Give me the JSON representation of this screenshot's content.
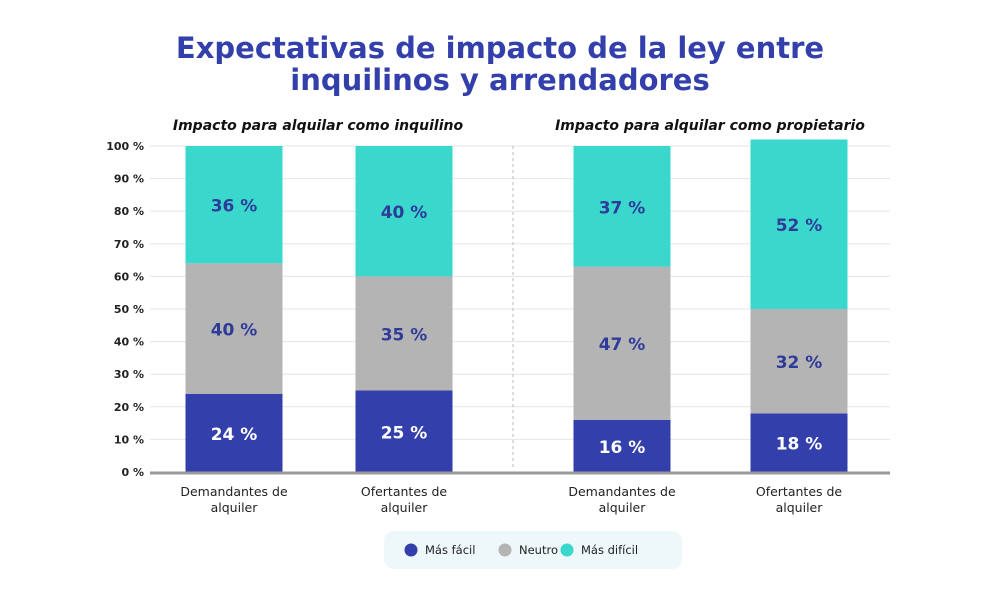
{
  "chart_data": {
    "type": "bar",
    "stacked": true,
    "title": "Expectativas de impacto de la ley entre inquilinos y arrendadores",
    "title_lines": [
      "Expectativas de impacto de la ley entre",
      "inquilinos y arrendadores"
    ],
    "panels": [
      {
        "subtitle": "Impacto para alquilar como inquilino",
        "categories": [
          [
            "Demandantes de",
            "alquiler"
          ],
          [
            "Ofertantes de",
            "alquiler"
          ]
        ]
      },
      {
        "subtitle": "Impacto para alquilar como propietario",
        "categories": [
          [
            "Demandantes de",
            "alquiler"
          ],
          [
            "Ofertantes de",
            "alquiler"
          ]
        ]
      }
    ],
    "series": [
      {
        "name": "Más fácil",
        "color": "#3340ab",
        "label_color": "#ffffff",
        "values": [
          24,
          25,
          16,
          18
        ]
      },
      {
        "name": "Neutro",
        "color": "#b4b4b4",
        "label_color": "#2f3b99",
        "values": [
          40,
          35,
          47,
          32
        ]
      },
      {
        "name": "Más difícil",
        "color": "#3ad8cc",
        "label_color": "#2f3b99",
        "values": [
          36,
          40,
          37,
          52
        ]
      }
    ],
    "value_suffix": " %",
    "ylim": [
      0,
      100
    ],
    "yticks": [
      "0 %",
      "10 %",
      "20 %",
      "30 %",
      "40 %",
      "50 %",
      "60 %",
      "70 %",
      "80 %",
      "90 %",
      "100 %"
    ],
    "grid": true,
    "legend_position": "bottom",
    "title_color": "#3340ab"
  }
}
